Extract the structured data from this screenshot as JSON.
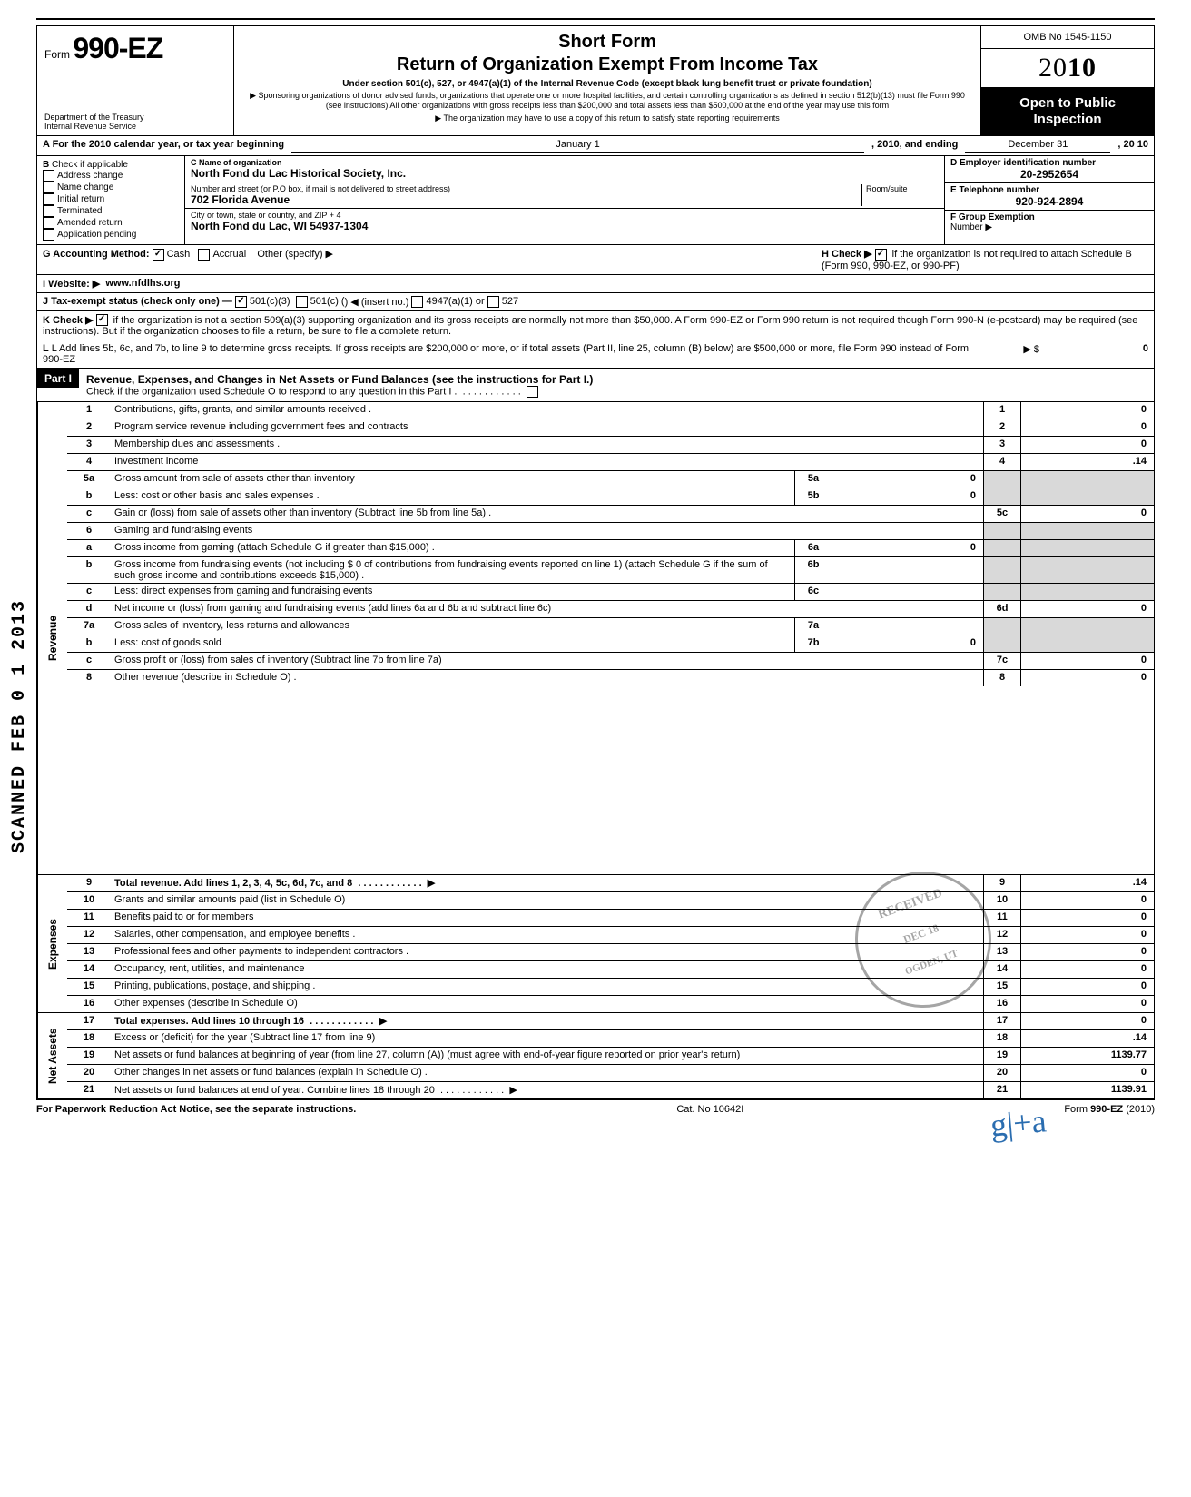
{
  "header": {
    "form_prefix": "Form",
    "form_number": "990-EZ",
    "dept1": "Department of the Treasury",
    "dept2": "Internal Revenue Service",
    "title1": "Short Form",
    "title2": "Return of Organization Exempt From Income Tax",
    "subtitle": "Under section 501(c), 527, or 4947(a)(1) of the Internal Revenue Code (except black lung benefit trust or private foundation)",
    "note1": "▶ Sponsoring organizations of donor advised funds, organizations that operate one or more hospital facilities, and certain controlling organizations as defined in section 512(b)(13) must file Form 990 (see instructions) All other organizations with gross receipts less than $200,000 and total assets less than $500,000 at the end of the year may use this form",
    "note2": "▶ The organization may have to use a copy of this return to satisfy state reporting requirements",
    "omb": "OMB No 1545-1150",
    "year_light": "20",
    "year_bold": "10",
    "open": "Open to Public Inspection"
  },
  "A": {
    "text": "A For the 2010 calendar year, or tax year beginning",
    "begin_label": "January 1",
    "mid": ", 2010, and ending",
    "end_label": "December 31",
    "end_year": ", 20   10"
  },
  "B": {
    "label": "B",
    "heading": "Check if applicable",
    "items": [
      "Address change",
      "Name change",
      "Initial return",
      "Terminated",
      "Amended return",
      "Application pending"
    ]
  },
  "C": {
    "label_name": "C  Name of organization",
    "name": "North Fond du Lac Historical Society, Inc.",
    "label_street": "Number and street (or P.O  box, if mail is not delivered to street address)",
    "room": "Room/suite",
    "street": "702 Florida Avenue",
    "label_city": "City or town, state or country, and ZIP + 4",
    "city": "North Fond du Lac, WI 54937-1304"
  },
  "D": {
    "label": "D Employer identification number",
    "value": "20-2952654"
  },
  "E": {
    "label": "E Telephone number",
    "value": "920-924-2894"
  },
  "F": {
    "label": "F Group Exemption",
    "sub": "Number ▶",
    "value": ""
  },
  "G": {
    "label": "G Accounting Method:",
    "cash": "Cash",
    "accrual": "Accrual",
    "other": "Other (specify) ▶"
  },
  "H": {
    "text": "H Check ▶",
    "rest": "if the organization is not required to attach Schedule B (Form 990, 990-EZ, or 990-PF)"
  },
  "I": {
    "label": "I  Website: ▶",
    "value": "www.nfdlhs.org"
  },
  "J": {
    "label": "J Tax-exempt status (check only one) —",
    "c3": "501(c)(3)",
    "c": "501(c) (",
    "insert": ")  ◀ (insert no.)",
    "a1": "4947(a)(1) or",
    "s527": "527"
  },
  "K": {
    "label": "K Check ▶",
    "text": "if the organization is not a section 509(a)(3) supporting organization and its gross receipts are normally not more than $50,000.  A Form 990-EZ or Form 990 return is not required though Form 990-N (e-postcard) may be required (see instructions). But if the organization chooses to file a return, be sure to file a complete return."
  },
  "L": {
    "text": "L Add lines 5b, 6c, and 7b, to line 9 to determine gross receipts. If gross receipts are $200,000 or more, or if total assets (Part II, line 25, column (B) below) are $500,000 or more, file Form 990 instead of Form 990-EZ",
    "arrow": "▶  $",
    "value": "0"
  },
  "part1": {
    "label": "Part I",
    "title": "Revenue, Expenses, and Changes in Net Assets or Fund Balances (see the instructions for Part I.)",
    "sub": "Check if the organization used Schedule O to respond to any question in this Part I ."
  },
  "sections": {
    "revenue": "Revenue",
    "expenses": "Expenses",
    "netassets": "Net Assets"
  },
  "lines": [
    {
      "n": "1",
      "t": "Contributions, gifts, grants, and similar amounts received .",
      "box": "1",
      "v": "0"
    },
    {
      "n": "2",
      "t": "Program service revenue including government fees and contracts",
      "box": "2",
      "v": "0"
    },
    {
      "n": "3",
      "t": "Membership dues and assessments .",
      "box": "3",
      "v": "0"
    },
    {
      "n": "4",
      "t": "Investment income",
      "box": "4",
      "v": ".14"
    },
    {
      "n": "5a",
      "t": "Gross amount from sale of assets other than inventory",
      "mbox": "5a",
      "mv": "0"
    },
    {
      "n": "b",
      "t": "Less: cost or other basis and sales expenses .",
      "mbox": "5b",
      "mv": "0"
    },
    {
      "n": "c",
      "t": "Gain or (loss) from sale of assets other than inventory (Subtract line 5b from line 5a) .",
      "box": "5c",
      "v": "0"
    },
    {
      "n": "6",
      "t": "Gaming and fundraising events"
    },
    {
      "n": "a",
      "t": "Gross income from gaming (attach Schedule G if greater than $15,000) .",
      "mbox": "6a",
      "mv": "0"
    },
    {
      "n": "b",
      "t": "Gross income from fundraising events (not including $                      0 of contributions from fundraising events reported on line 1) (attach Schedule G if the sum of such gross income and contributions exceeds $15,000) .",
      "mbox": "6b",
      "mv": ""
    },
    {
      "n": "c",
      "t": "Less: direct expenses from gaming and fundraising events",
      "mbox": "6c",
      "mv": ""
    },
    {
      "n": "d",
      "t": "Net income or (loss) from gaming and fundraising events (add lines 6a and 6b and subtract line 6c)",
      "box": "6d",
      "v": "0"
    },
    {
      "n": "7a",
      "t": "Gross sales of inventory, less returns and allowances",
      "mbox": "7a",
      "mv": ""
    },
    {
      "n": "b",
      "t": "Less: cost of goods sold",
      "mbox": "7b",
      "mv": "0"
    },
    {
      "n": "c",
      "t": "Gross profit or (loss) from sales of inventory (Subtract line 7b from line 7a)",
      "box": "7c",
      "v": "0"
    },
    {
      "n": "8",
      "t": "Other revenue (describe in Schedule O) .",
      "box": "8",
      "v": "0"
    },
    {
      "n": "9",
      "t": "Total revenue. Add lines 1, 2, 3, 4, 5c, 6d, 7c, and 8",
      "box": "9",
      "v": ".14",
      "bold": true,
      "arrow": true
    },
    {
      "n": "10",
      "t": "Grants and similar amounts paid (list in Schedule O)",
      "box": "10",
      "v": "0"
    },
    {
      "n": "11",
      "t": "Benefits paid to or for members",
      "box": "11",
      "v": "0"
    },
    {
      "n": "12",
      "t": "Salaries, other compensation, and employee benefits .",
      "box": "12",
      "v": "0"
    },
    {
      "n": "13",
      "t": "Professional fees and other payments to independent contractors .",
      "box": "13",
      "v": "0"
    },
    {
      "n": "14",
      "t": "Occupancy, rent, utilities, and maintenance",
      "box": "14",
      "v": "0"
    },
    {
      "n": "15",
      "t": "Printing, publications, postage, and shipping .",
      "box": "15",
      "v": "0"
    },
    {
      "n": "16",
      "t": "Other expenses (describe in Schedule O)",
      "box": "16",
      "v": "0"
    },
    {
      "n": "17",
      "t": "Total expenses. Add lines 10 through 16",
      "box": "17",
      "v": "0",
      "bold": true,
      "arrow": true
    },
    {
      "n": "18",
      "t": "Excess or (deficit) for the year (Subtract line 17 from line 9)",
      "box": "18",
      "v": ".14"
    },
    {
      "n": "19",
      "t": "Net assets or fund balances at beginning of year (from line 27, column (A)) (must agree with end-of-year figure reported on prior year's return)",
      "box": "19",
      "v": "1139.77"
    },
    {
      "n": "20",
      "t": "Other changes in net assets or fund balances (explain in Schedule O) .",
      "box": "20",
      "v": "0"
    },
    {
      "n": "21",
      "t": "Net assets or fund balances at end of year. Combine lines 18 through 20",
      "box": "21",
      "v": "1139.91",
      "arrow": true
    }
  ],
  "footer": {
    "left": "For Paperwork Reduction Act Notice, see the separate instructions.",
    "mid": "Cat. No  10642I",
    "right": "Form 990-EZ (2010)"
  },
  "stamps": {
    "scanned": "SCANNED FEB 0 1 2013",
    "received_top": "RECEIVED",
    "received_date": "DEC 18",
    "received_bottom": "OGDEN, UT",
    "hand": "g|+a"
  }
}
